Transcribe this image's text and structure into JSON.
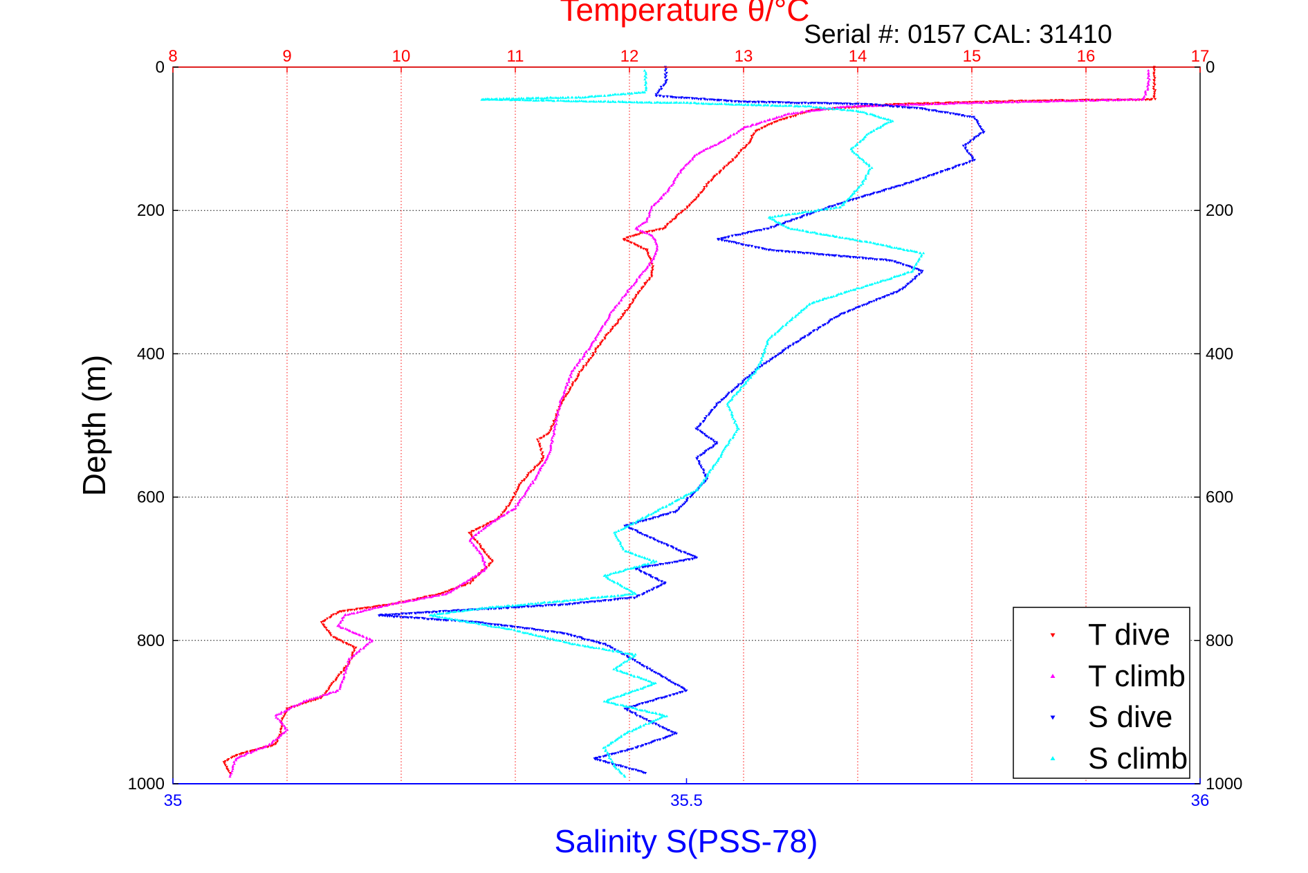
{
  "chart_data": {
    "type": "scatter",
    "title": "Temperature θ/°C",
    "subtitle": "Serial #: 0157  CAL: 31410",
    "xlabel": "Salinity S(PSS-78)",
    "ylabel": "Depth (m)",
    "y_axis": {
      "range": [
        0,
        1000
      ],
      "reversed": true,
      "ticks": [
        0,
        200,
        400,
        600,
        800,
        1000
      ],
      "tick_labels": [
        "0",
        "200",
        "400",
        "600",
        "800",
        "1000"
      ]
    },
    "x_top_axis": {
      "quantity": "temperature",
      "range": [
        8,
        17
      ],
      "ticks": [
        8,
        9,
        10,
        11,
        12,
        13,
        14,
        15,
        16,
        17
      ],
      "tick_labels": [
        "8",
        "9",
        "10",
        "11",
        "12",
        "13",
        "14",
        "15",
        "16",
        "17"
      ],
      "color": "#ff0000",
      "gridlines": true
    },
    "x_bottom_axis": {
      "quantity": "salinity",
      "range": [
        35,
        36
      ],
      "ticks": [
        35,
        35.5,
        36
      ],
      "tick_labels": [
        "35",
        "35.5",
        "36"
      ],
      "color": "#0000ff"
    },
    "grid": "dotted",
    "legend": {
      "placement": "bottom-right",
      "entries": [
        "T dive",
        "T climb",
        "S dive",
        "S climb"
      ]
    },
    "series": [
      {
        "name": "T dive",
        "axis": "temperature",
        "color": "#ff0000",
        "marker": "triangle-down",
        "points": [
          [
            16.6,
            0
          ],
          [
            16.6,
            20
          ],
          [
            16.6,
            45
          ],
          [
            15.5,
            47
          ],
          [
            14.3,
            52
          ],
          [
            13.6,
            60
          ],
          [
            13.3,
            75
          ],
          [
            13.1,
            90
          ],
          [
            13.05,
            105
          ],
          [
            12.9,
            130
          ],
          [
            12.7,
            160
          ],
          [
            12.55,
            190
          ],
          [
            12.4,
            210
          ],
          [
            12.3,
            225
          ],
          [
            12.1,
            232
          ],
          [
            11.95,
            240
          ],
          [
            12.15,
            255
          ],
          [
            12.2,
            275
          ],
          [
            12.2,
            290
          ],
          [
            12.1,
            310
          ],
          [
            11.95,
            345
          ],
          [
            11.75,
            385
          ],
          [
            11.55,
            430
          ],
          [
            11.4,
            470
          ],
          [
            11.3,
            510
          ],
          [
            11.2,
            520
          ],
          [
            11.25,
            545
          ],
          [
            11.05,
            580
          ],
          [
            10.95,
            610
          ],
          [
            10.85,
            630
          ],
          [
            10.6,
            650
          ],
          [
            10.7,
            670
          ],
          [
            10.8,
            690
          ],
          [
            10.6,
            720
          ],
          [
            10.35,
            735
          ],
          [
            9.9,
            750
          ],
          [
            9.45,
            760
          ],
          [
            9.3,
            775
          ],
          [
            9.4,
            795
          ],
          [
            9.6,
            810
          ],
          [
            9.55,
            830
          ],
          [
            9.4,
            860
          ],
          [
            9.3,
            880
          ],
          [
            9.0,
            895
          ],
          [
            8.95,
            915
          ],
          [
            8.95,
            930
          ],
          [
            8.9,
            945
          ],
          [
            8.55,
            960
          ],
          [
            8.45,
            970
          ],
          [
            8.5,
            985
          ]
        ]
      },
      {
        "name": "T climb",
        "axis": "temperature",
        "color": "#ff00ff",
        "marker": "triangle-up",
        "points": [
          [
            16.55,
            5
          ],
          [
            16.55,
            25
          ],
          [
            16.5,
            45
          ],
          [
            15.0,
            50
          ],
          [
            13.9,
            55
          ],
          [
            13.4,
            65
          ],
          [
            13.0,
            85
          ],
          [
            12.8,
            105
          ],
          [
            12.6,
            120
          ],
          [
            12.45,
            145
          ],
          [
            12.35,
            170
          ],
          [
            12.2,
            195
          ],
          [
            12.15,
            215
          ],
          [
            12.05,
            225
          ],
          [
            12.2,
            235
          ],
          [
            12.25,
            250
          ],
          [
            12.2,
            270
          ],
          [
            12.05,
            300
          ],
          [
            11.85,
            340
          ],
          [
            11.7,
            380
          ],
          [
            11.5,
            425
          ],
          [
            11.4,
            465
          ],
          [
            11.35,
            500
          ],
          [
            11.3,
            540
          ],
          [
            11.15,
            580
          ],
          [
            11.0,
            615
          ],
          [
            10.75,
            640
          ],
          [
            10.6,
            660
          ],
          [
            10.7,
            680
          ],
          [
            10.75,
            700
          ],
          [
            10.4,
            735
          ],
          [
            9.9,
            750
          ],
          [
            9.5,
            765
          ],
          [
            9.45,
            780
          ],
          [
            9.6,
            790
          ],
          [
            9.75,
            800
          ],
          [
            9.55,
            825
          ],
          [
            9.5,
            850
          ],
          [
            9.45,
            870
          ],
          [
            9.15,
            885
          ],
          [
            8.9,
            905
          ],
          [
            9.0,
            925
          ],
          [
            8.85,
            945
          ],
          [
            8.55,
            965
          ],
          [
            8.5,
            990
          ]
        ]
      },
      {
        "name": "S dive",
        "axis": "salinity",
        "color": "#0000ff",
        "marker": "triangle-down",
        "points": [
          [
            35.48,
            0
          ],
          [
            35.48,
            20
          ],
          [
            35.47,
            40
          ],
          [
            35.55,
            48
          ],
          [
            35.68,
            52
          ],
          [
            35.73,
            58
          ],
          [
            35.78,
            70
          ],
          [
            35.79,
            90
          ],
          [
            35.77,
            110
          ],
          [
            35.78,
            130
          ],
          [
            35.72,
            160
          ],
          [
            35.65,
            190
          ],
          [
            35.63,
            200
          ],
          [
            35.58,
            225
          ],
          [
            35.53,
            240
          ],
          [
            35.58,
            255
          ],
          [
            35.7,
            270
          ],
          [
            35.73,
            285
          ],
          [
            35.71,
            310
          ],
          [
            35.65,
            345
          ],
          [
            35.6,
            390
          ],
          [
            35.57,
            420
          ],
          [
            35.55,
            445
          ],
          [
            35.53,
            470
          ],
          [
            35.51,
            505
          ],
          [
            35.53,
            525
          ],
          [
            35.51,
            545
          ],
          [
            35.52,
            575
          ],
          [
            35.49,
            620
          ],
          [
            35.44,
            640
          ],
          [
            35.47,
            660
          ],
          [
            35.51,
            685
          ],
          [
            35.45,
            700
          ],
          [
            35.48,
            720
          ],
          [
            35.45,
            740
          ],
          [
            35.38,
            750
          ],
          [
            35.28,
            758
          ],
          [
            35.2,
            765
          ],
          [
            35.3,
            775
          ],
          [
            35.38,
            790
          ],
          [
            35.42,
            805
          ],
          [
            35.44,
            820
          ],
          [
            35.47,
            845
          ],
          [
            35.5,
            870
          ],
          [
            35.44,
            895
          ],
          [
            35.46,
            910
          ],
          [
            35.49,
            930
          ],
          [
            35.45,
            950
          ],
          [
            35.41,
            965
          ],
          [
            35.46,
            985
          ]
        ]
      },
      {
        "name": "S climb",
        "axis": "salinity",
        "color": "#00ffff",
        "marker": "triangle-up",
        "points": [
          [
            35.46,
            5
          ],
          [
            35.46,
            20
          ],
          [
            35.46,
            35
          ],
          [
            35.4,
            42
          ],
          [
            35.3,
            45
          ],
          [
            35.5,
            50
          ],
          [
            35.62,
            55
          ],
          [
            35.67,
            62
          ],
          [
            35.7,
            75
          ],
          [
            35.68,
            90
          ],
          [
            35.66,
            115
          ],
          [
            35.68,
            140
          ],
          [
            35.67,
            165
          ],
          [
            35.65,
            195
          ],
          [
            35.58,
            210
          ],
          [
            35.6,
            225
          ],
          [
            35.68,
            245
          ],
          [
            35.73,
            260
          ],
          [
            35.72,
            285
          ],
          [
            35.62,
            330
          ],
          [
            35.58,
            380
          ],
          [
            35.57,
            420
          ],
          [
            35.54,
            470
          ],
          [
            35.55,
            505
          ],
          [
            35.53,
            550
          ],
          [
            35.51,
            590
          ],
          [
            35.47,
            620
          ],
          [
            35.43,
            650
          ],
          [
            35.44,
            675
          ],
          [
            35.47,
            690
          ],
          [
            35.42,
            710
          ],
          [
            35.45,
            735
          ],
          [
            35.38,
            745
          ],
          [
            35.3,
            755
          ],
          [
            35.25,
            765
          ],
          [
            35.33,
            785
          ],
          [
            35.39,
            805
          ],
          [
            35.45,
            820
          ],
          [
            35.43,
            840
          ],
          [
            35.47,
            860
          ],
          [
            35.42,
            885
          ],
          [
            35.48,
            905
          ],
          [
            35.44,
            930
          ],
          [
            35.42,
            950
          ],
          [
            35.43,
            975
          ],
          [
            35.44,
            990
          ]
        ]
      }
    ]
  }
}
